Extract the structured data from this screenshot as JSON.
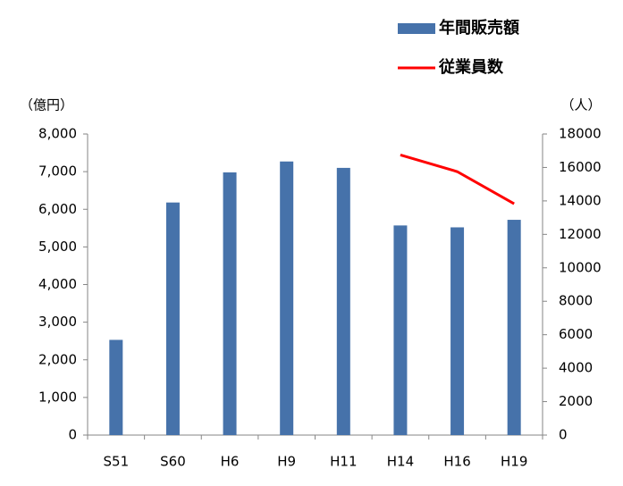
{
  "chart_data": {
    "type": "bar-line",
    "y_label": "（億円）",
    "y2_label": "（人）",
    "categories": [
      "S51",
      "S60",
      "H6",
      "H9",
      "H11",
      "H14",
      "H16",
      "H19"
    ],
    "series": [
      {
        "name": "年間販売額",
        "type": "bar",
        "color": "#4672aa",
        "values": [
          2530,
          6180,
          6980,
          7270,
          7100,
          5570,
          5520,
          5720
        ]
      },
      {
        "name": "従業員数",
        "type": "line",
        "axis": "y2",
        "color": "#ff0000",
        "values": [
          null,
          null,
          null,
          null,
          null,
          16750,
          15750,
          13830
        ]
      }
    ],
    "ylim": [
      0,
      8000
    ],
    "yticks": [
      0,
      {
        "value": 1000,
        "label": "1,000"
      },
      {
        "value": 2000,
        "label": "2,000"
      },
      {
        "value": 3000,
        "label": "3,000"
      },
      {
        "value": 4000,
        "label": "4,000"
      },
      {
        "value": 5000,
        "label": "5,000"
      },
      {
        "value": 6000,
        "label": "6,000"
      },
      {
        "value": 7000,
        "label": "7,000"
      },
      {
        "value": 8000,
        "label": "8,000"
      }
    ],
    "y2lim": [
      0,
      18000
    ],
    "y2ticks": [
      0,
      2000,
      4000,
      6000,
      8000,
      10000,
      12000,
      14000,
      16000,
      18000
    ],
    "legend": "top-right"
  }
}
